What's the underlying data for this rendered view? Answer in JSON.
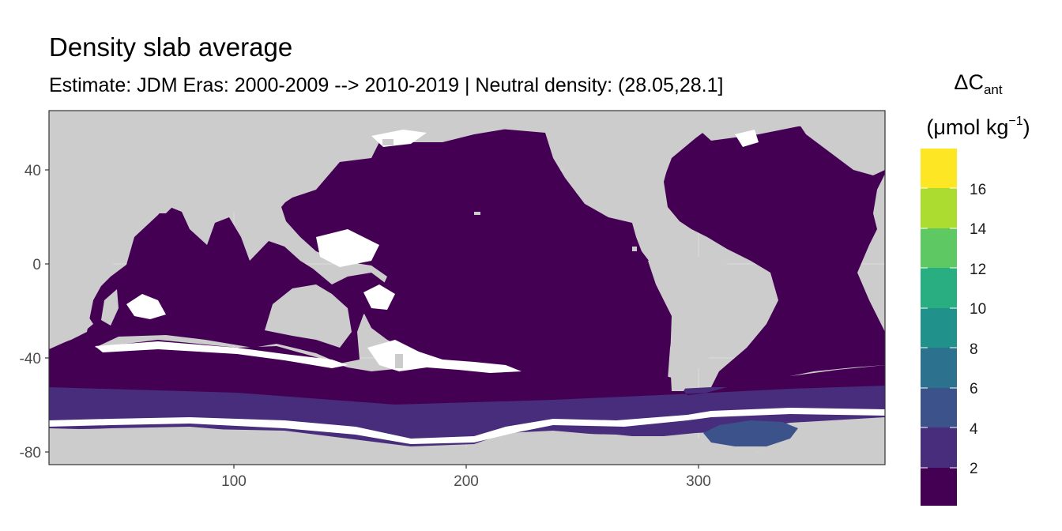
{
  "title": "Density slab average",
  "subtitle": "Estimate: JDM Eras: 2000-2009 --> 2010-2019 | Neutral density: (28.05,28.1]",
  "legend": {
    "symbol": "ΔC",
    "subscript": "ant",
    "unit_prefix": "(μmol kg",
    "unit_sup": "−1",
    "unit_suffix": ")",
    "labels": [
      "2",
      "4",
      "6",
      "8",
      "10",
      "12",
      "14",
      "16"
    ],
    "colors": [
      "#440154",
      "#472d7b",
      "#3b528b",
      "#2c728e",
      "#21918c",
      "#28ae80",
      "#5ec962",
      "#addc30",
      "#fde725"
    ]
  },
  "axes": {
    "x_ticks": [
      "100",
      "200",
      "300"
    ],
    "y_ticks": [
      "40",
      "0",
      "-40",
      "-80"
    ]
  },
  "colors": {
    "land": "#cccccc",
    "no_data": "#ffffff",
    "ocean_base": "#440154"
  },
  "chart_data": {
    "type": "heatmap",
    "title": "Density slab average",
    "subtitle": "Estimate: JDM Eras: 2000-2009 --> 2010-2019 | Neutral density: (28.05,28.1]",
    "xlim": [
      20,
      380
    ],
    "ylim": [
      -85,
      65
    ],
    "x_ticks": [
      100,
      200,
      300
    ],
    "y_ticks": [
      40,
      0,
      -40,
      -80
    ],
    "legend_breaks": [
      2,
      4,
      6,
      8,
      10,
      12,
      14,
      16
    ],
    "legend_title": "ΔC_ant (μmol kg⁻¹)",
    "regions": [
      {
        "range": "0-2",
        "description": "most of the global ocean north of about -60"
      },
      {
        "range": "2-4",
        "description": "Southern Ocean band around Antarctica"
      },
      {
        "range": "4-6",
        "description": "Weddell Sea region near lon 310-340, lat -68 to -75"
      }
    ]
  }
}
